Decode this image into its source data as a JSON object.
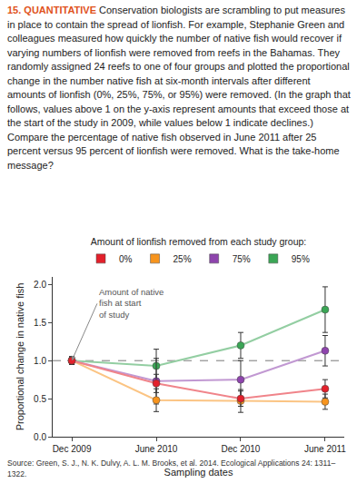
{
  "question": {
    "number": "15.",
    "label": "QUANTITATIVE",
    "text": "Conservation biologists are scrambling to put measures in place to contain the spread of lionfish. For example, Stephanie Green and colleagues measured how quickly the number of native fish would recover if varying numbers of lionfish were removed from reefs in the Bahamas. They randomly assigned 24 reefs to one of four groups and plotted the proportional change in the number native fish at six-month intervals after different amounts of lionfish (0%, 25%, 75%, or 95%) were removed. (In the graph that follows, values above 1 on the y-axis represent amounts that exceed those at the start of the study in 2009, while values below 1 indicate declines.) Compare the percentage of native fish observed in June 2011 after 25 percent versus 95 percent of lionfish were removed. What is the take-home message?"
  },
  "chart_data": {
    "type": "line",
    "legend_title": "Amount of lionfish removed from each study group:",
    "legend": "top",
    "x_label": "Sampling dates",
    "y_label": "Proportional change in native fish",
    "categories": [
      "Dec 2009",
      "June 2010",
      "Dec 2010",
      "June 2011"
    ],
    "series": [
      {
        "name": "0%",
        "color": "#e3202b",
        "values": [
          1.0,
          0.7,
          0.5,
          0.63
        ],
        "errors": [
          0.05,
          0.12,
          0.1,
          0.12
        ]
      },
      {
        "name": "25%",
        "color": "#f7941d",
        "values": [
          1.0,
          0.48,
          0.47,
          0.46
        ],
        "errors": [
          0.05,
          0.15,
          0.15,
          0.1
        ]
      },
      {
        "name": "75%",
        "color": "#8e44ad",
        "values": [
          1.0,
          0.73,
          0.75,
          1.13
        ],
        "errors": [
          0.05,
          0.3,
          0.25,
          0.2
        ]
      },
      {
        "name": "95%",
        "color": "#3aa655",
        "values": [
          1.0,
          0.93,
          1.2,
          1.67
        ],
        "errors": [
          0.05,
          0.22,
          0.17,
          0.3
        ]
      }
    ],
    "ylim": [
      0,
      2.1
    ],
    "yticks": [
      {
        "value": 0,
        "label": "0.0"
      },
      {
        "value": 0.5,
        "label": "0.5"
      },
      {
        "value": 1,
        "label": "1.0"
      },
      {
        "value": 1.5,
        "label": "1.5"
      },
      {
        "value": 2,
        "label": "2.0"
      }
    ],
    "reference_line": {
      "y": 1,
      "line_style": "dashed"
    },
    "annotations": [
      {
        "text": "Amount of native fish at start of study",
        "x": "Dec 2009",
        "y": 1
      }
    ],
    "marker": "circle",
    "grid": false
  },
  "source": "Source: Green, S. J., N. K. Dulvy, A. L. M. Brooks, et al. 2014. Ecological Applications 24: 1311–1322."
}
